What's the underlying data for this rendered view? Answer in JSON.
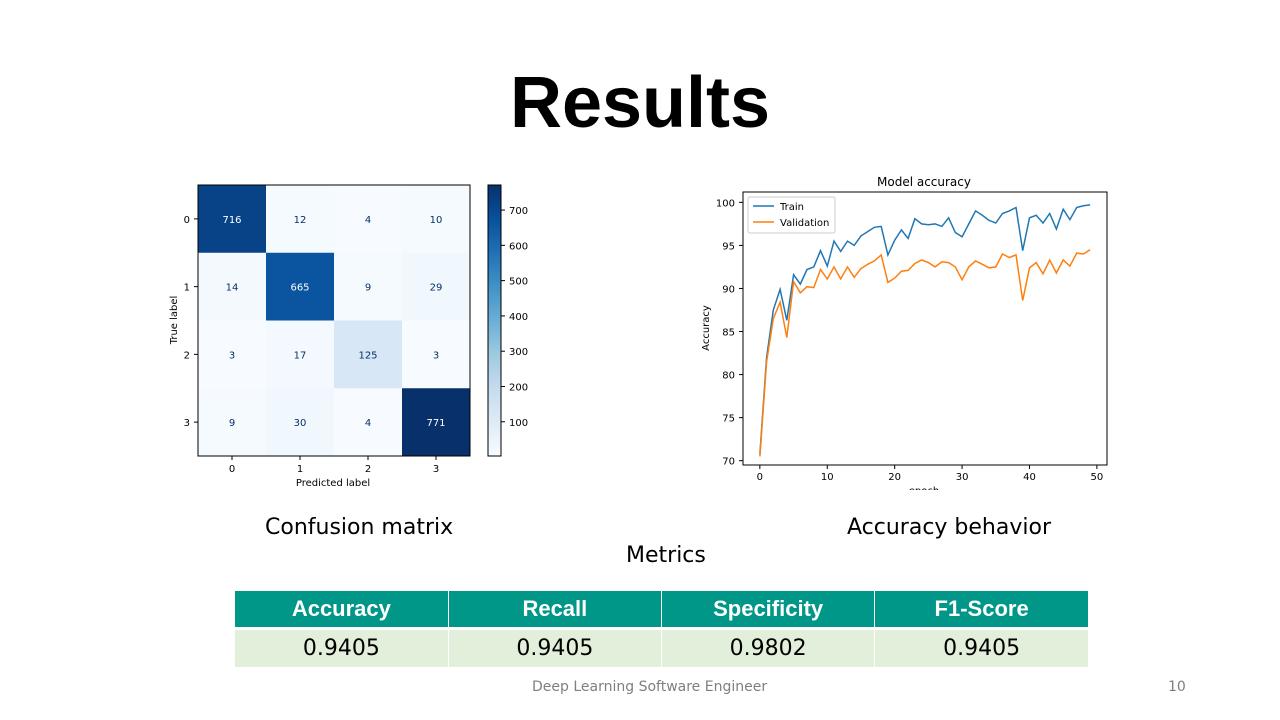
{
  "slide": {
    "title": "Results",
    "caption_left": "Confusion matrix",
    "caption_right": "Accuracy behavior",
    "caption_metrics": "Metrics",
    "footer": "Deep Learning Software Engineer",
    "page_number": "10"
  },
  "metrics_table": {
    "headers": [
      "Accuracy",
      "Recall",
      "Specificity",
      "F1-Score"
    ],
    "values": [
      "0.9405",
      "0.9405",
      "0.9802",
      "0.9405"
    ],
    "header_color": "#009688",
    "row_color": "#e2efda"
  },
  "chart_data": [
    {
      "type": "heatmap",
      "xlabel": "Predicted label",
      "ylabel": "True label",
      "x_categories": [
        "0",
        "1",
        "2",
        "3"
      ],
      "y_categories": [
        "0",
        "1",
        "2",
        "3"
      ],
      "values": [
        [
          716,
          12,
          4,
          10
        ],
        [
          14,
          665,
          9,
          29
        ],
        [
          3,
          17,
          125,
          3
        ],
        [
          9,
          30,
          4,
          771
        ]
      ],
      "colorbar_ticks": [
        100,
        200,
        300,
        400,
        500,
        600,
        700
      ],
      "colormap": "Blues",
      "vmin": 3,
      "vmax": 771
    },
    {
      "type": "line",
      "title": "Model accuracy",
      "xlabel": "epoch",
      "ylabel": "Accuracy",
      "xlim": [
        -2.5,
        51.5
      ],
      "ylim": [
        69.5,
        101.2
      ],
      "xticks": [
        0,
        10,
        20,
        30,
        40,
        50
      ],
      "yticks": [
        70,
        75,
        80,
        85,
        90,
        95,
        100
      ],
      "grid": false,
      "legend_position": "top-left",
      "x": [
        0,
        1,
        2,
        3,
        4,
        5,
        6,
        7,
        8,
        9,
        10,
        11,
        12,
        13,
        14,
        15,
        16,
        17,
        18,
        19,
        20,
        21,
        22,
        23,
        24,
        25,
        26,
        27,
        28,
        29,
        30,
        31,
        32,
        33,
        34,
        35,
        36,
        37,
        38,
        39,
        40,
        41,
        42,
        43,
        44,
        45,
        46,
        47,
        48,
        49
      ],
      "series": [
        {
          "name": "Train",
          "color": "#1f77b4",
          "values": [
            70.8,
            82.0,
            87.5,
            89.9,
            86.3,
            91.6,
            90.5,
            92.2,
            92.5,
            94.4,
            92.6,
            95.5,
            94.3,
            95.5,
            95.0,
            96.1,
            96.6,
            97.1,
            97.2,
            93.9,
            95.6,
            96.8,
            95.8,
            98.1,
            97.5,
            97.4,
            97.5,
            97.2,
            98.2,
            96.5,
            96.0,
            97.5,
            99.0,
            98.5,
            97.9,
            97.6,
            98.7,
            99.0,
            99.4,
            94.4,
            98.2,
            98.5,
            97.6,
            98.7,
            96.9,
            99.2,
            98.0,
            99.4,
            99.6,
            99.7
          ]
        },
        {
          "name": "Validation",
          "color": "#ff7f0e",
          "values": [
            70.5,
            81.5,
            86.5,
            88.4,
            84.3,
            90.8,
            89.5,
            90.2,
            90.1,
            92.2,
            91.1,
            92.5,
            91.1,
            92.5,
            91.3,
            92.3,
            92.8,
            93.2,
            93.9,
            90.7,
            91.2,
            92.0,
            92.1,
            92.9,
            93.3,
            93.0,
            92.5,
            93.1,
            93.0,
            92.5,
            91.0,
            92.5,
            93.2,
            92.8,
            92.4,
            92.5,
            94.0,
            93.6,
            93.9,
            88.6,
            92.4,
            93.0,
            91.7,
            93.3,
            91.8,
            93.3,
            92.6,
            94.1,
            94.0,
            94.5
          ]
        }
      ]
    }
  ]
}
